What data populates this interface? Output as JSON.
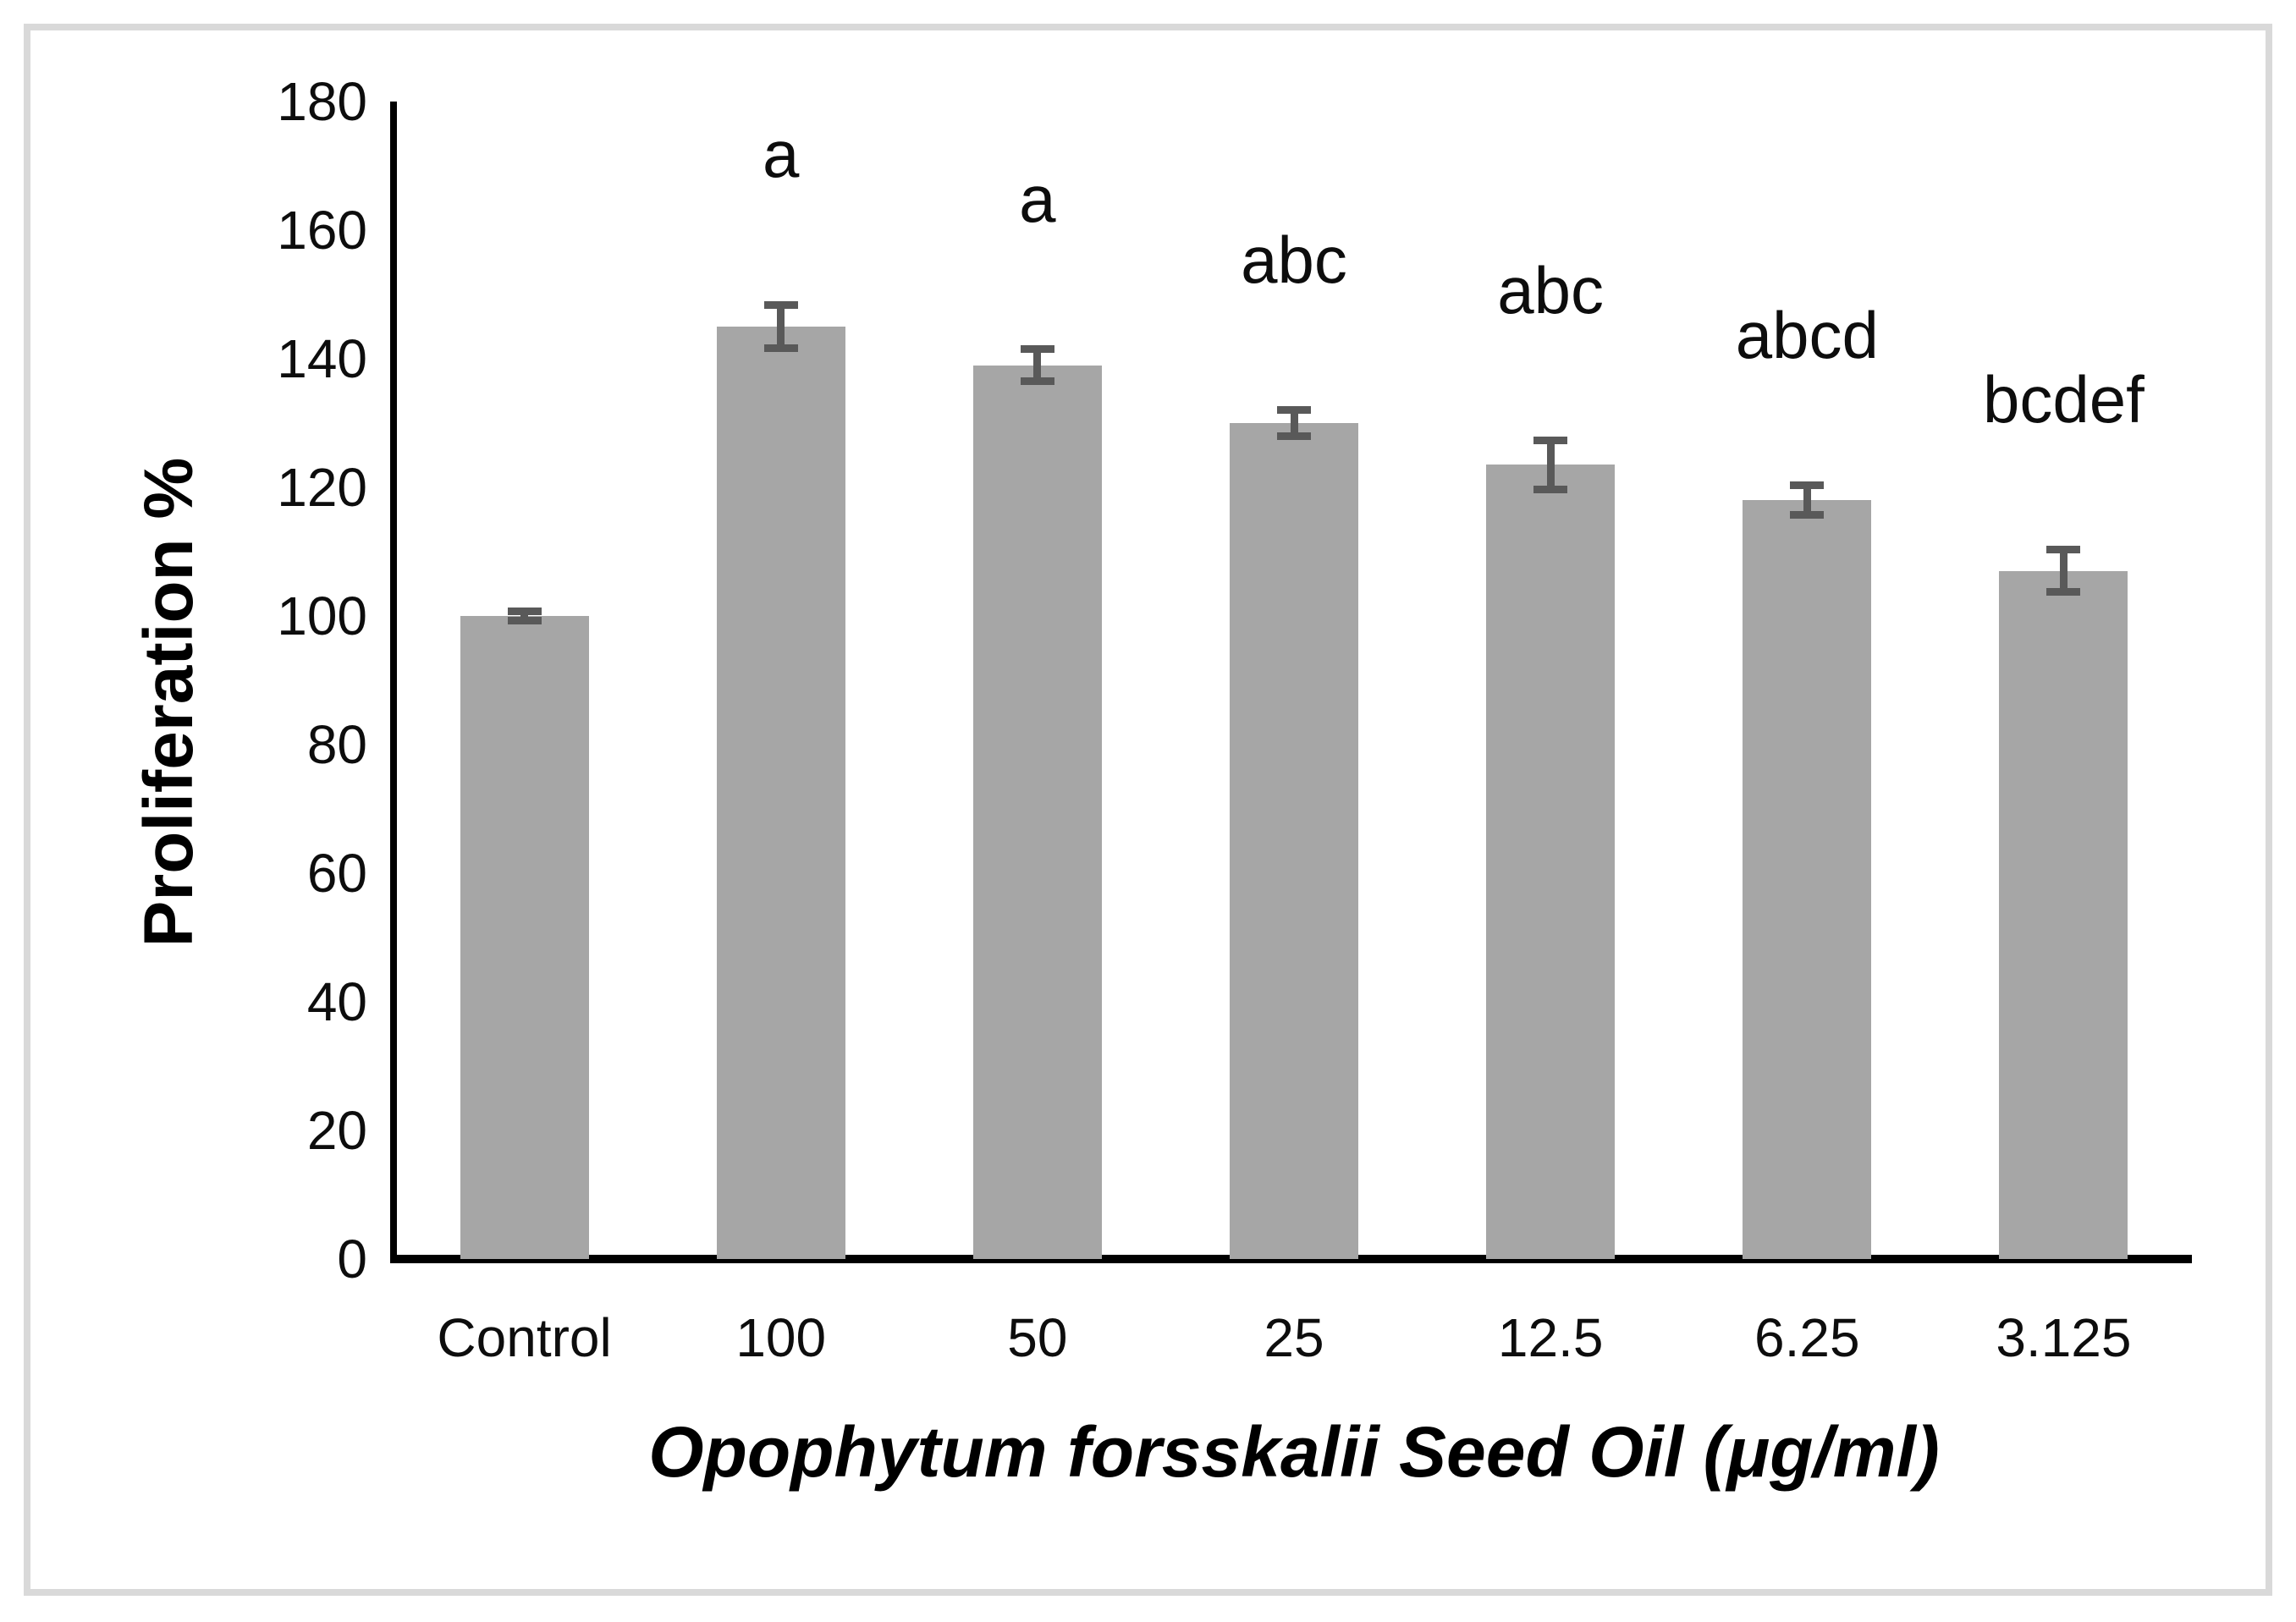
{
  "figure": {
    "background_color": "#ffffff",
    "frame_color": "#d9d9d9"
  },
  "chart_data": {
    "type": "bar",
    "title": "",
    "ylabel": "Proliferation %",
    "xlabel": "Opophytum forsskalii Seed Oil (μg/ml)",
    "categories": [
      "Control",
      "100",
      "50",
      "25",
      "12.5",
      "6.25",
      "3.125"
    ],
    "values": [
      100,
      145,
      139,
      130,
      123.5,
      118,
      107
    ],
    "error_bars": [
      0.7,
      3.4,
      2.5,
      2,
      3.8,
      2.3,
      3.3
    ],
    "sig_letters": [
      "",
      "a",
      "a",
      "abc",
      "abc",
      "abcd",
      "bcdef"
    ],
    "yticks": [
      0,
      20,
      40,
      60,
      80,
      100,
      120,
      140,
      160,
      180
    ],
    "ylim": [
      0,
      180
    ],
    "grid": false,
    "legend": "none",
    "bar_color": "#a6a6a6",
    "error_color": "#595959",
    "axis_color": "#000000",
    "text_color": "#0d0d0d"
  }
}
